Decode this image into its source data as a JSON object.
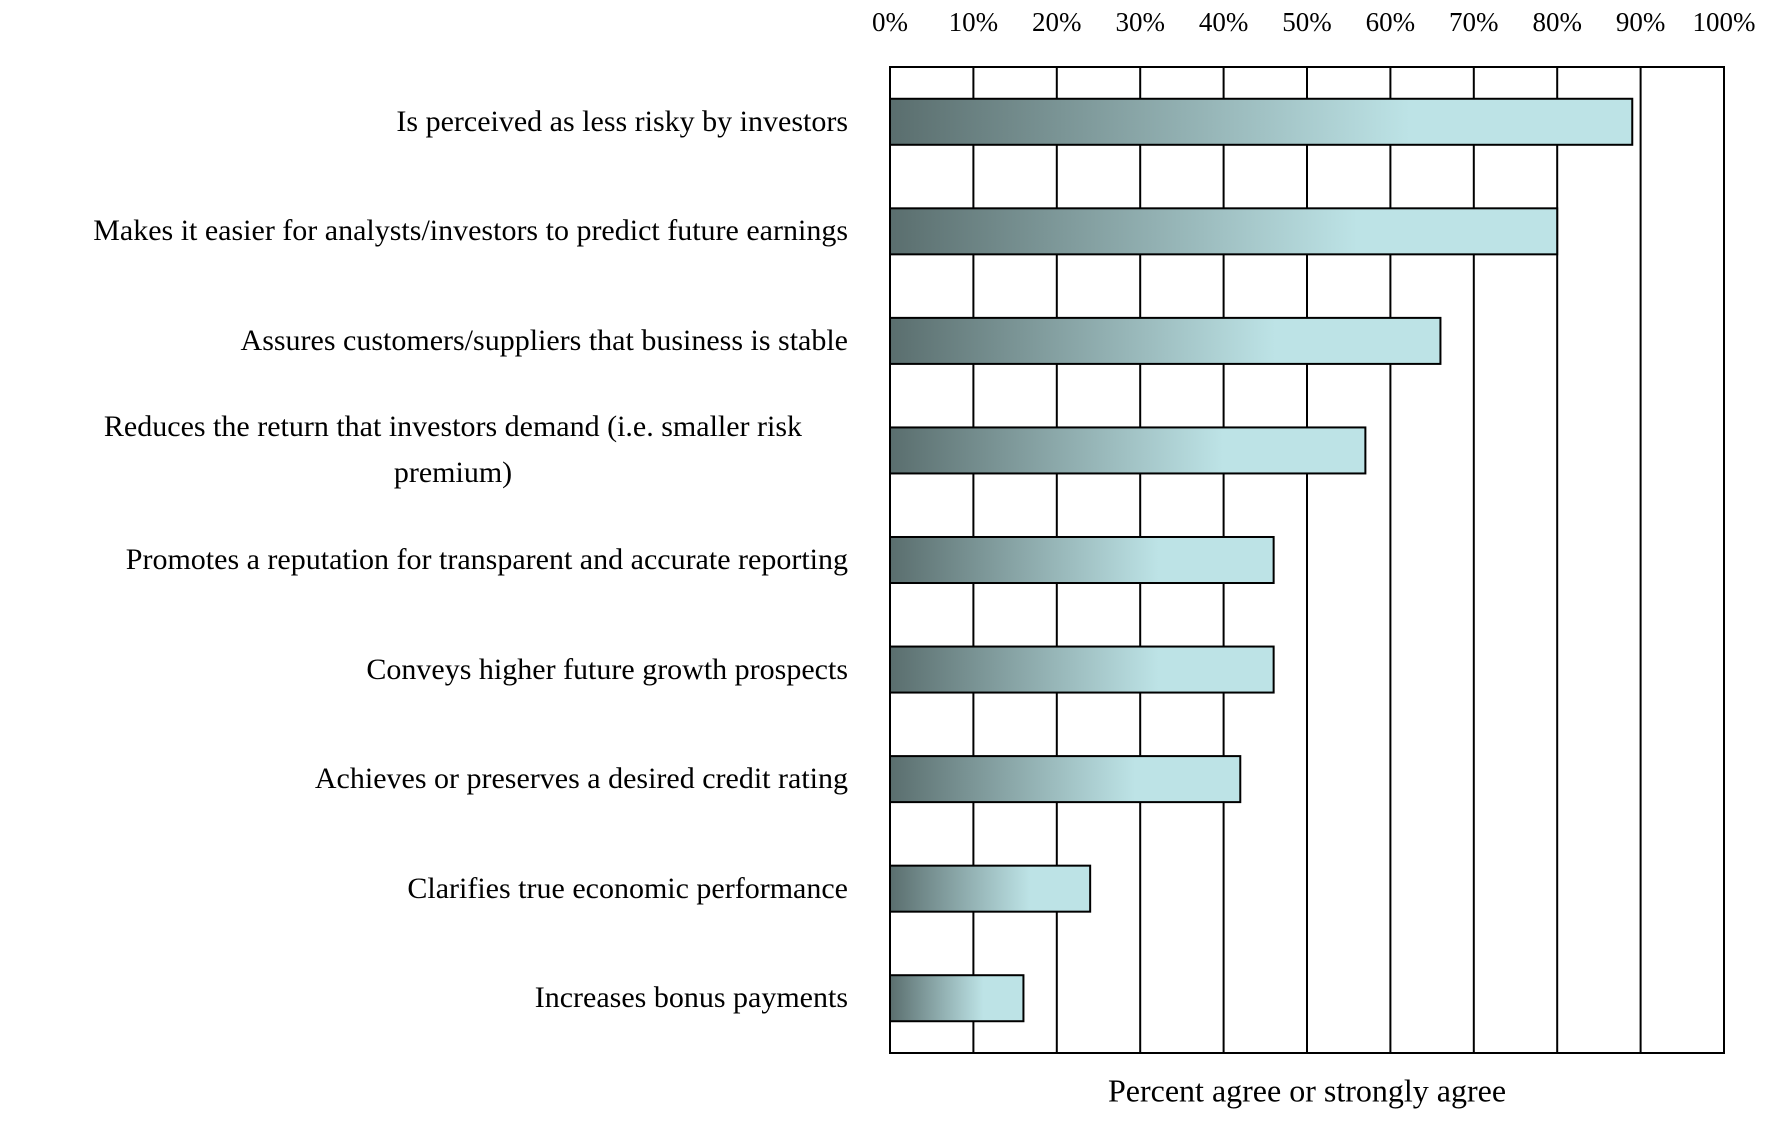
{
  "chart_data": {
    "type": "bar",
    "orientation": "horizontal",
    "x_label": "Percent agree or strongly agree",
    "categories": [
      "Is perceived as less risky by investors",
      "Makes it easier for analysts/investors to predict future earnings",
      "Assures customers/suppliers that business is stable",
      "Reduces the return that investors demand (i.e. smaller risk premium)",
      "Promotes a reputation for transparent and accurate reporting",
      "Conveys higher future growth prospects",
      "Achieves or preserves a desired credit rating",
      "Clarifies true economic performance",
      "Increases bonus payments"
    ],
    "values": [
      89,
      80,
      66,
      57,
      46,
      46,
      42,
      24,
      16
    ],
    "color": [
      "#5a6e6e",
      "#bde3e6"
    ],
    "xlim": [
      0,
      100
    ],
    "xticks": [
      {
        "value": 0,
        "label": "0%"
      },
      {
        "value": 10,
        "label": "10%"
      },
      {
        "value": 20,
        "label": "20%"
      },
      {
        "value": 30,
        "label": "30%"
      },
      {
        "value": 40,
        "label": "40%"
      },
      {
        "value": 50,
        "label": "50%"
      },
      {
        "value": 60,
        "label": "60%"
      },
      {
        "value": 70,
        "label": "70%"
      },
      {
        "value": 80,
        "label": "80%"
      },
      {
        "value": 90,
        "label": "90%"
      },
      {
        "value": 100,
        "label": "100%"
      }
    ],
    "grid": true
  }
}
